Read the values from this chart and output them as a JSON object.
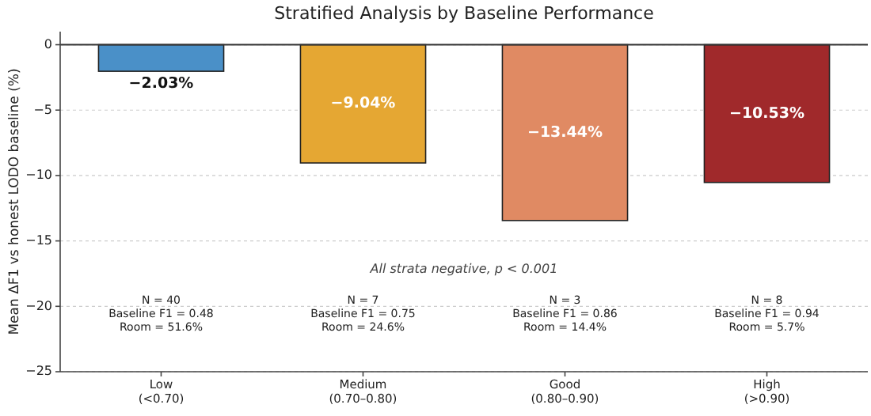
{
  "chart_data": {
    "type": "bar",
    "title": "Stratified Analysis by Baseline Performance",
    "ylabel": "Mean ΔF1 vs honest LODO baseline (%)",
    "categories": [
      "Low\n(<0.70)",
      "Medium\n(0.70–0.80)",
      "Good\n(0.80–0.90)",
      "High\n(>0.90)"
    ],
    "values": [
      -2.03,
      -9.04,
      -13.44,
      -10.53
    ],
    "colors": [
      "#4a90c8",
      "#e5a733",
      "#e08a63",
      "#a0292b"
    ],
    "value_labels": [
      "−2.03%",
      "−9.04%",
      "−13.44%",
      "−10.53%"
    ],
    "ylim": [
      -25,
      1
    ],
    "yticks": [
      {
        "value": 0,
        "label": "0"
      },
      {
        "value": -5,
        "label": "−5"
      },
      {
        "value": -10,
        "label": "−10"
      },
      {
        "value": -15,
        "label": "−15"
      },
      {
        "value": -20,
        "label": "−20"
      },
      {
        "value": -25,
        "label": "−25"
      }
    ],
    "grid": "y",
    "ref_lines": [
      {
        "axis": "y",
        "value": 0,
        "color": "#333333"
      }
    ],
    "annotations": [
      "All strata negative, p < 0.001",
      "N = 40\nBaseline F1 = 0.48\nRoom = 51.6%",
      "N = 7\nBaseline F1 = 0.75\nRoom = 24.6%",
      "N = 3\nBaseline F1 = 0.86\nRoom = 14.4%",
      "N = 8\nBaseline F1 = 0.94\nRoom = 5.7%"
    ]
  }
}
